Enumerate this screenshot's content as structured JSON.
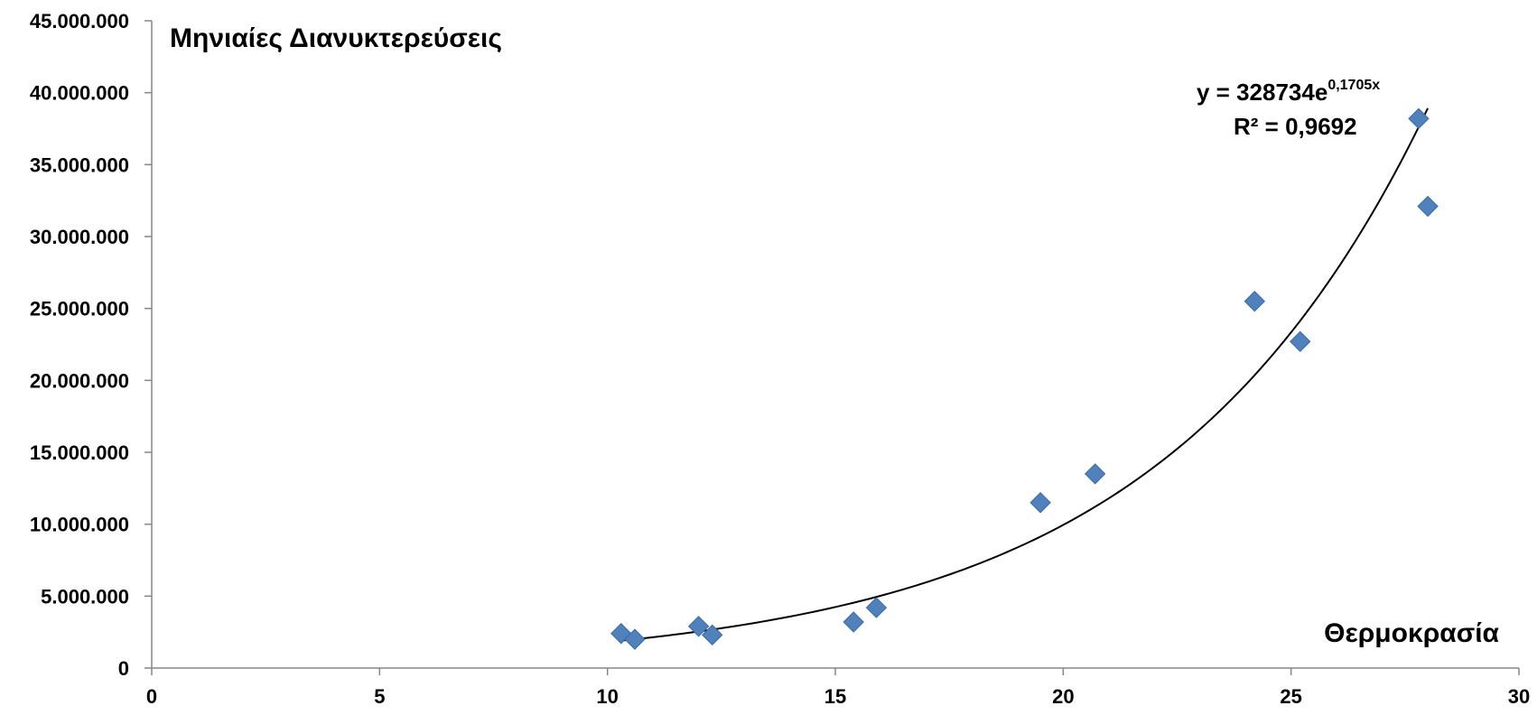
{
  "chart_data": {
    "type": "scatter",
    "title": "",
    "ylabel": "Μηνιαίες Διανυκτερεύσεις",
    "xlabel": "Θερμοκρασία",
    "xlim": [
      0,
      30
    ],
    "ylim": [
      0,
      45000000
    ],
    "x_ticks": [
      0,
      5,
      10,
      15,
      20,
      25,
      30
    ],
    "y_ticks": [
      0,
      5000000,
      10000000,
      15000000,
      20000000,
      25000000,
      30000000,
      35000000,
      40000000,
      45000000
    ],
    "x_tick_labels": [
      "0",
      "5",
      "10",
      "15",
      "20",
      "25",
      "30"
    ],
    "y_tick_labels": [
      "0",
      "5.000.000",
      "10.000.000",
      "15.000.000",
      "20.000.000",
      "25.000.000",
      "30.000.000",
      "35.000.000",
      "40.000.000",
      "45.000.000"
    ],
    "grid": false,
    "marker": "diamond",
    "marker_color": "#4F81BD",
    "points": [
      {
        "x": 10.3,
        "y": 2400000
      },
      {
        "x": 10.6,
        "y": 2000000
      },
      {
        "x": 12.0,
        "y": 2900000
      },
      {
        "x": 12.3,
        "y": 2300000
      },
      {
        "x": 15.4,
        "y": 3200000
      },
      {
        "x": 15.9,
        "y": 4200000
      },
      {
        "x": 19.5,
        "y": 11500000
      },
      {
        "x": 20.7,
        "y": 13500000
      },
      {
        "x": 24.2,
        "y": 25500000
      },
      {
        "x": 25.2,
        "y": 22700000
      },
      {
        "x": 27.8,
        "y": 38200000
      },
      {
        "x": 28.0,
        "y": 32100000
      }
    ],
    "trendline": {
      "type": "exponential",
      "a": 328734,
      "b": 0.1705,
      "x_range": [
        10.3,
        28.0
      ],
      "color": "#000000",
      "equation_main": "y = 328734e",
      "equation_exp": "0,1705x",
      "r2_label": "R² = 0,9692"
    }
  }
}
